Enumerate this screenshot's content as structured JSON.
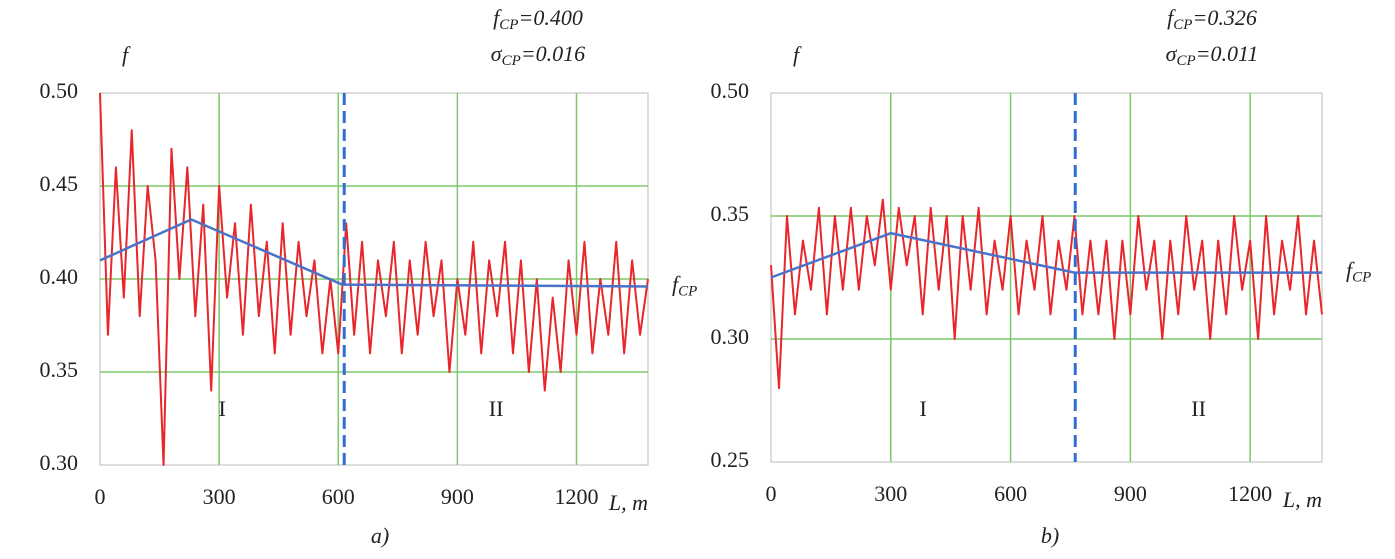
{
  "chart_data": [
    {
      "type": "line",
      "caption": "a)",
      "y_label": "f",
      "x_label": "L, m",
      "stats": [
        {
          "symbol": "f",
          "subscript": "CP",
          "text": "=0.400"
        },
        {
          "symbol": "σ",
          "subscript": "CP",
          "text": "=0.016"
        }
      ],
      "level_label": {
        "symbol": "f",
        "subscript": "CP"
      },
      "zones": [
        "I",
        "II"
      ],
      "boundary": 615,
      "xlim": [
        0,
        1380
      ],
      "xticks": [
        0,
        300,
        600,
        900,
        1200
      ],
      "ylim": [
        0.3,
        0.5
      ],
      "yticks": [
        {
          "value": 0.3,
          "label": "0.30"
        },
        0.35,
        {
          "value": 0.4,
          "label": "0.40"
        },
        0.45,
        {
          "value": 0.5,
          "label": "0.50"
        }
      ],
      "grid": true,
      "color": "#e8262b",
      "x": [
        0,
        20,
        40,
        60,
        80,
        100,
        120,
        140,
        160,
        180,
        200,
        220,
        240,
        260,
        280,
        300,
        320,
        340,
        360,
        380,
        400,
        420,
        440,
        460,
        480,
        500,
        520,
        540,
        560,
        580,
        600,
        620,
        640,
        660,
        680,
        700,
        720,
        740,
        760,
        780,
        800,
        820,
        840,
        860,
        880,
        900,
        920,
        940,
        960,
        980,
        1000,
        1020,
        1040,
        1060,
        1080,
        1100,
        1120,
        1140,
        1160,
        1180,
        1200,
        1220,
        1240,
        1260,
        1280,
        1300,
        1320,
        1340,
        1360,
        1380
      ],
      "values": [
        0.5,
        0.37,
        0.46,
        0.39,
        0.48,
        0.38,
        0.45,
        0.41,
        0.3,
        0.47,
        0.4,
        0.46,
        0.38,
        0.44,
        0.34,
        0.45,
        0.39,
        0.43,
        0.37,
        0.44,
        0.38,
        0.42,
        0.36,
        0.43,
        0.37,
        0.42,
        0.38,
        0.41,
        0.36,
        0.4,
        0.36,
        0.43,
        0.37,
        0.42,
        0.36,
        0.41,
        0.38,
        0.42,
        0.36,
        0.41,
        0.37,
        0.42,
        0.38,
        0.41,
        0.35,
        0.4,
        0.37,
        0.42,
        0.36,
        0.41,
        0.38,
        0.42,
        0.36,
        0.41,
        0.35,
        0.4,
        0.34,
        0.39,
        0.35,
        0.41,
        0.37,
        0.42,
        0.36,
        0.4,
        0.37,
        0.42,
        0.36,
        0.41,
        0.37,
        0.4
      ],
      "trend": {
        "color": "#4a72c8",
        "x": [
          0,
          230,
          610,
          1380
        ],
        "values": [
          0.41,
          0.432,
          0.397,
          0.396
        ]
      },
      "boundary_color": "#2f6fd0"
    },
    {
      "type": "line",
      "caption": "b)",
      "y_label": "f",
      "x_label": "L, m",
      "stats": [
        {
          "symbol": "f",
          "subscript": "CP",
          "text": "=0.326"
        },
        {
          "symbol": "σ",
          "subscript": "CP",
          "text": "=0.011"
        }
      ],
      "level_label": {
        "symbol": "f",
        "subscript": "CP"
      },
      "zones": [
        "I",
        "II"
      ],
      "boundary": 762,
      "xlim": [
        0,
        1380
      ],
      "xticks": [
        0,
        300,
        600,
        900,
        1200
      ],
      "ylim": [
        0.25,
        0.5
      ],
      "yticks": [
        0.25,
        {
          "value": 0.3,
          "label": "0.30"
        },
        0.35,
        {
          "value": 0.5,
          "label": "0.50"
        }
      ],
      "grid": true,
      "color": "#e8262b",
      "x": [
        0,
        20,
        40,
        60,
        80,
        100,
        120,
        140,
        160,
        180,
        200,
        220,
        240,
        260,
        280,
        300,
        320,
        340,
        360,
        380,
        400,
        420,
        440,
        460,
        480,
        500,
        520,
        540,
        560,
        580,
        600,
        620,
        640,
        660,
        680,
        700,
        720,
        740,
        760,
        780,
        800,
        820,
        840,
        860,
        880,
        900,
        920,
        940,
        960,
        980,
        1000,
        1020,
        1040,
        1060,
        1080,
        1100,
        1120,
        1140,
        1160,
        1180,
        1200,
        1220,
        1240,
        1260,
        1280,
        1300,
        1320,
        1340,
        1360,
        1380
      ],
      "values": [
        0.33,
        0.28,
        0.35,
        0.31,
        0.34,
        0.32,
        0.36,
        0.31,
        0.35,
        0.32,
        0.36,
        0.32,
        0.35,
        0.33,
        0.37,
        0.32,
        0.36,
        0.33,
        0.35,
        0.31,
        0.36,
        0.32,
        0.35,
        0.3,
        0.35,
        0.32,
        0.36,
        0.31,
        0.34,
        0.32,
        0.35,
        0.31,
        0.34,
        0.32,
        0.35,
        0.31,
        0.34,
        0.32,
        0.35,
        0.31,
        0.34,
        0.31,
        0.34,
        0.3,
        0.34,
        0.31,
        0.35,
        0.32,
        0.34,
        0.3,
        0.34,
        0.31,
        0.35,
        0.32,
        0.34,
        0.3,
        0.34,
        0.31,
        0.35,
        0.32,
        0.34,
        0.3,
        0.35,
        0.31,
        0.34,
        0.32,
        0.35,
        0.31,
        0.34,
        0.31
      ],
      "trend": {
        "color": "#4a72c8",
        "x": [
          0,
          300,
          760,
          1380
        ],
        "values": [
          0.325,
          0.343,
          0.327,
          0.327
        ]
      },
      "boundary_color": "#2f6fd0"
    }
  ]
}
